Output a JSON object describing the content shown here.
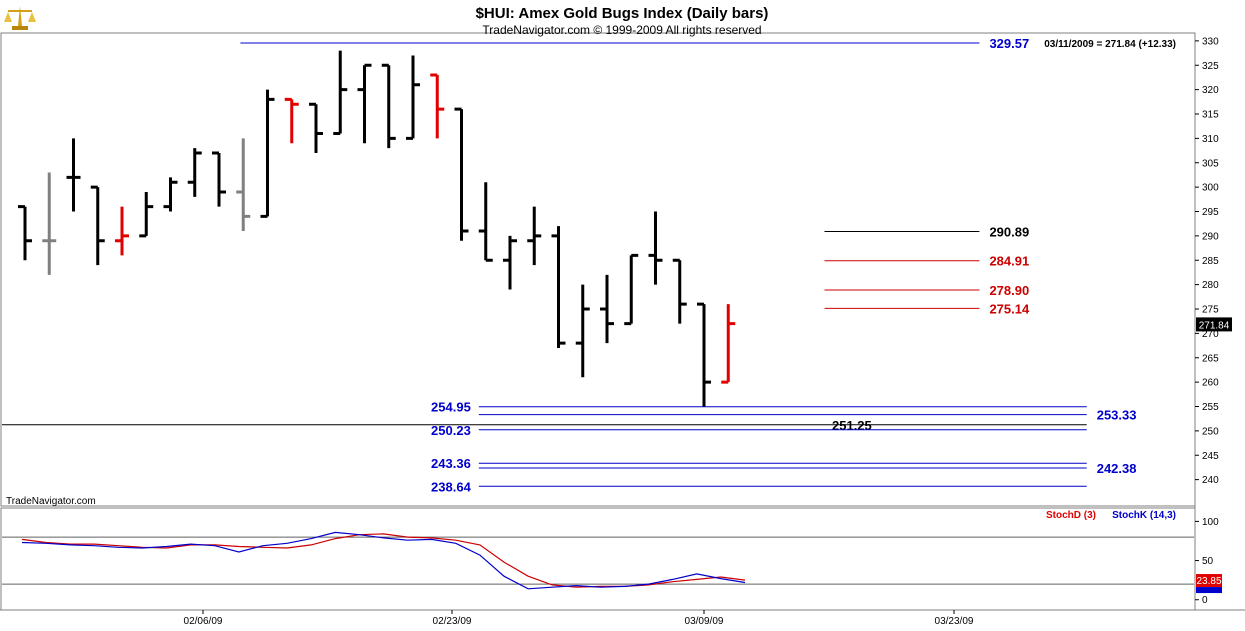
{
  "header": {
    "title": "$HUI:  Amex Gold Bugs Index  (Daily bars)",
    "subtitle": "TradeNavigator.com © 1999-2009 All rights reserved",
    "last_info": "03/11/2009 = 271.84 (+12.33)",
    "watermark": "TradeNavigator.com",
    "logo_icon": "scales-icon"
  },
  "colors": {
    "up_bar": "#000000",
    "down_bar": "#e00000",
    "neutral_bar": "#808080",
    "blue_level": "#0000cc",
    "red_level": "#cc0000",
    "black_level": "#000000",
    "stochD": "#e00000",
    "stochK": "#0000cc"
  },
  "chart_data": [
    {
      "type": "ohlc",
      "ylim": [
        235,
        331
      ],
      "y_ticks": [
        240,
        245,
        250,
        255,
        260,
        265,
        270,
        275,
        280,
        285,
        290,
        295,
        300,
        305,
        310,
        315,
        320,
        325,
        330
      ],
      "x_ticks": [
        "02/06/09",
        "02/23/09",
        "03/09/09",
        "03/23/09"
      ],
      "last_price": "271.84",
      "bars": [
        {
          "o": 296,
          "h": 296,
          "l": 285,
          "c": 289,
          "col": "black"
        },
        {
          "o": 289,
          "h": 303,
          "l": 282,
          "c": 289,
          "col": "gray"
        },
        {
          "o": 302,
          "h": 310,
          "l": 295,
          "c": 302,
          "col": "black"
        },
        {
          "o": 300,
          "h": 300,
          "l": 284,
          "c": 289,
          "col": "black"
        },
        {
          "o": 289,
          "h": 296,
          "l": 286,
          "c": 290,
          "col": "red"
        },
        {
          "o": 290,
          "h": 299,
          "l": 290,
          "c": 296,
          "col": "black"
        },
        {
          "o": 296,
          "h": 302,
          "l": 295,
          "c": 301,
          "col": "black"
        },
        {
          "o": 301,
          "h": 308,
          "l": 298,
          "c": 307,
          "col": "black"
        },
        {
          "o": 307,
          "h": 307,
          "l": 296,
          "c": 299,
          "col": "black"
        },
        {
          "o": 299,
          "h": 310,
          "l": 291,
          "c": 294,
          "col": "gray"
        },
        {
          "o": 294,
          "h": 320,
          "l": 294,
          "c": 318,
          "col": "black"
        },
        {
          "o": 318,
          "h": 318,
          "l": 309,
          "c": 317,
          "col": "red"
        },
        {
          "o": 317,
          "h": 317,
          "l": 307,
          "c": 311,
          "col": "black"
        },
        {
          "o": 311,
          "h": 328,
          "l": 311,
          "c": 320,
          "col": "black"
        },
        {
          "o": 320,
          "h": 325,
          "l": 309,
          "c": 325,
          "col": "black"
        },
        {
          "o": 325,
          "h": 325,
          "l": 308,
          "c": 310,
          "col": "black"
        },
        {
          "o": 310,
          "h": 327,
          "l": 310,
          "c": 321,
          "col": "black"
        },
        {
          "o": 323,
          "h": 323,
          "l": 310,
          "c": 316,
          "col": "red"
        },
        {
          "o": 316,
          "h": 316,
          "l": 289,
          "c": 291,
          "col": "black"
        },
        {
          "o": 291,
          "h": 301,
          "l": 285,
          "c": 285,
          "col": "black"
        },
        {
          "o": 285,
          "h": 290,
          "l": 279,
          "c": 289,
          "col": "black"
        },
        {
          "o": 289,
          "h": 296,
          "l": 284,
          "c": 290,
          "col": "black"
        },
        {
          "o": 290,
          "h": 292,
          "l": 267,
          "c": 268,
          "col": "black"
        },
        {
          "o": 268,
          "h": 280,
          "l": 261,
          "c": 275,
          "col": "black"
        },
        {
          "o": 275,
          "h": 282,
          "l": 268,
          "c": 272,
          "col": "black"
        },
        {
          "o": 272,
          "h": 286,
          "l": 272,
          "c": 286,
          "col": "black"
        },
        {
          "o": 286,
          "h": 295,
          "l": 280,
          "c": 285,
          "col": "black"
        },
        {
          "o": 285,
          "h": 285,
          "l": 272,
          "c": 276,
          "col": "black"
        },
        {
          "o": 276,
          "h": 276,
          "l": 255,
          "c": 260,
          "col": "black"
        },
        {
          "o": 260,
          "h": 276,
          "l": 260,
          "c": 272,
          "col": "red"
        }
      ],
      "levels": [
        {
          "value": 329.57,
          "label": "329.57",
          "color": "blue",
          "x_from": 0.2,
          "x_to": 0.82,
          "label_side": "right"
        },
        {
          "value": 290.89,
          "label": "290.89",
          "color": "black",
          "x_from": 0.69,
          "x_to": 0.82,
          "label_side": "right"
        },
        {
          "value": 284.91,
          "label": "284.91",
          "color": "red",
          "x_from": 0.69,
          "x_to": 0.82,
          "label_side": "right"
        },
        {
          "value": 278.9,
          "label": "278.90",
          "color": "red",
          "x_from": 0.69,
          "x_to": 0.82,
          "label_side": "right"
        },
        {
          "value": 275.14,
          "label": "275.14",
          "color": "red",
          "x_from": 0.69,
          "x_to": 0.82,
          "label_side": "right"
        },
        {
          "value": 254.95,
          "label": "254.95",
          "color": "blue",
          "x_from": 0.4,
          "x_to": 0.91,
          "label_side": "left"
        },
        {
          "value": 253.33,
          "label": "253.33",
          "color": "blue",
          "x_from": 0.4,
          "x_to": 0.91,
          "label_side": "right-far"
        },
        {
          "value": 251.25,
          "label": "251.25",
          "color": "black",
          "x_from": 0.0,
          "x_to": 0.91,
          "label_side": "right-mid"
        },
        {
          "value": 250.23,
          "label": "250.23",
          "color": "blue",
          "x_from": 0.4,
          "x_to": 0.91,
          "label_side": "left"
        },
        {
          "value": 243.36,
          "label": "243.36",
          "color": "blue",
          "x_from": 0.4,
          "x_to": 0.91,
          "label_side": "left"
        },
        {
          "value": 242.38,
          "label": "242.38",
          "color": "blue",
          "x_from": 0.4,
          "x_to": 0.91,
          "label_side": "right-far"
        },
        {
          "value": 238.64,
          "label": "238.64",
          "color": "blue",
          "x_from": 0.4,
          "x_to": 0.91,
          "label_side": "left"
        }
      ]
    },
    {
      "type": "line",
      "ylim": [
        -8,
        112
      ],
      "y_ticks": [
        0,
        50,
        100
      ],
      "ref_lines": [
        80,
        20
      ],
      "legend_placement": "top-right",
      "series": [
        {
          "name": "StochD (3)",
          "color": "red",
          "values": [
            77,
            73,
            71,
            71,
            69,
            67,
            66,
            70,
            70,
            68,
            67,
            66,
            70,
            78,
            83,
            84,
            80,
            79,
            76,
            70,
            48,
            30,
            19,
            16,
            17,
            17,
            19,
            23,
            26,
            29,
            25
          ]
        },
        {
          "name": "StochK (14,3)",
          "color": "blue",
          "values": [
            73,
            72,
            70,
            69,
            67,
            66,
            68,
            71,
            69,
            61,
            69,
            72,
            78,
            86,
            83,
            79,
            76,
            77,
            72,
            57,
            30,
            14,
            16,
            18,
            16,
            17,
            20,
            26,
            33,
            27,
            22
          ]
        }
      ],
      "last_value": "23.85"
    }
  ]
}
